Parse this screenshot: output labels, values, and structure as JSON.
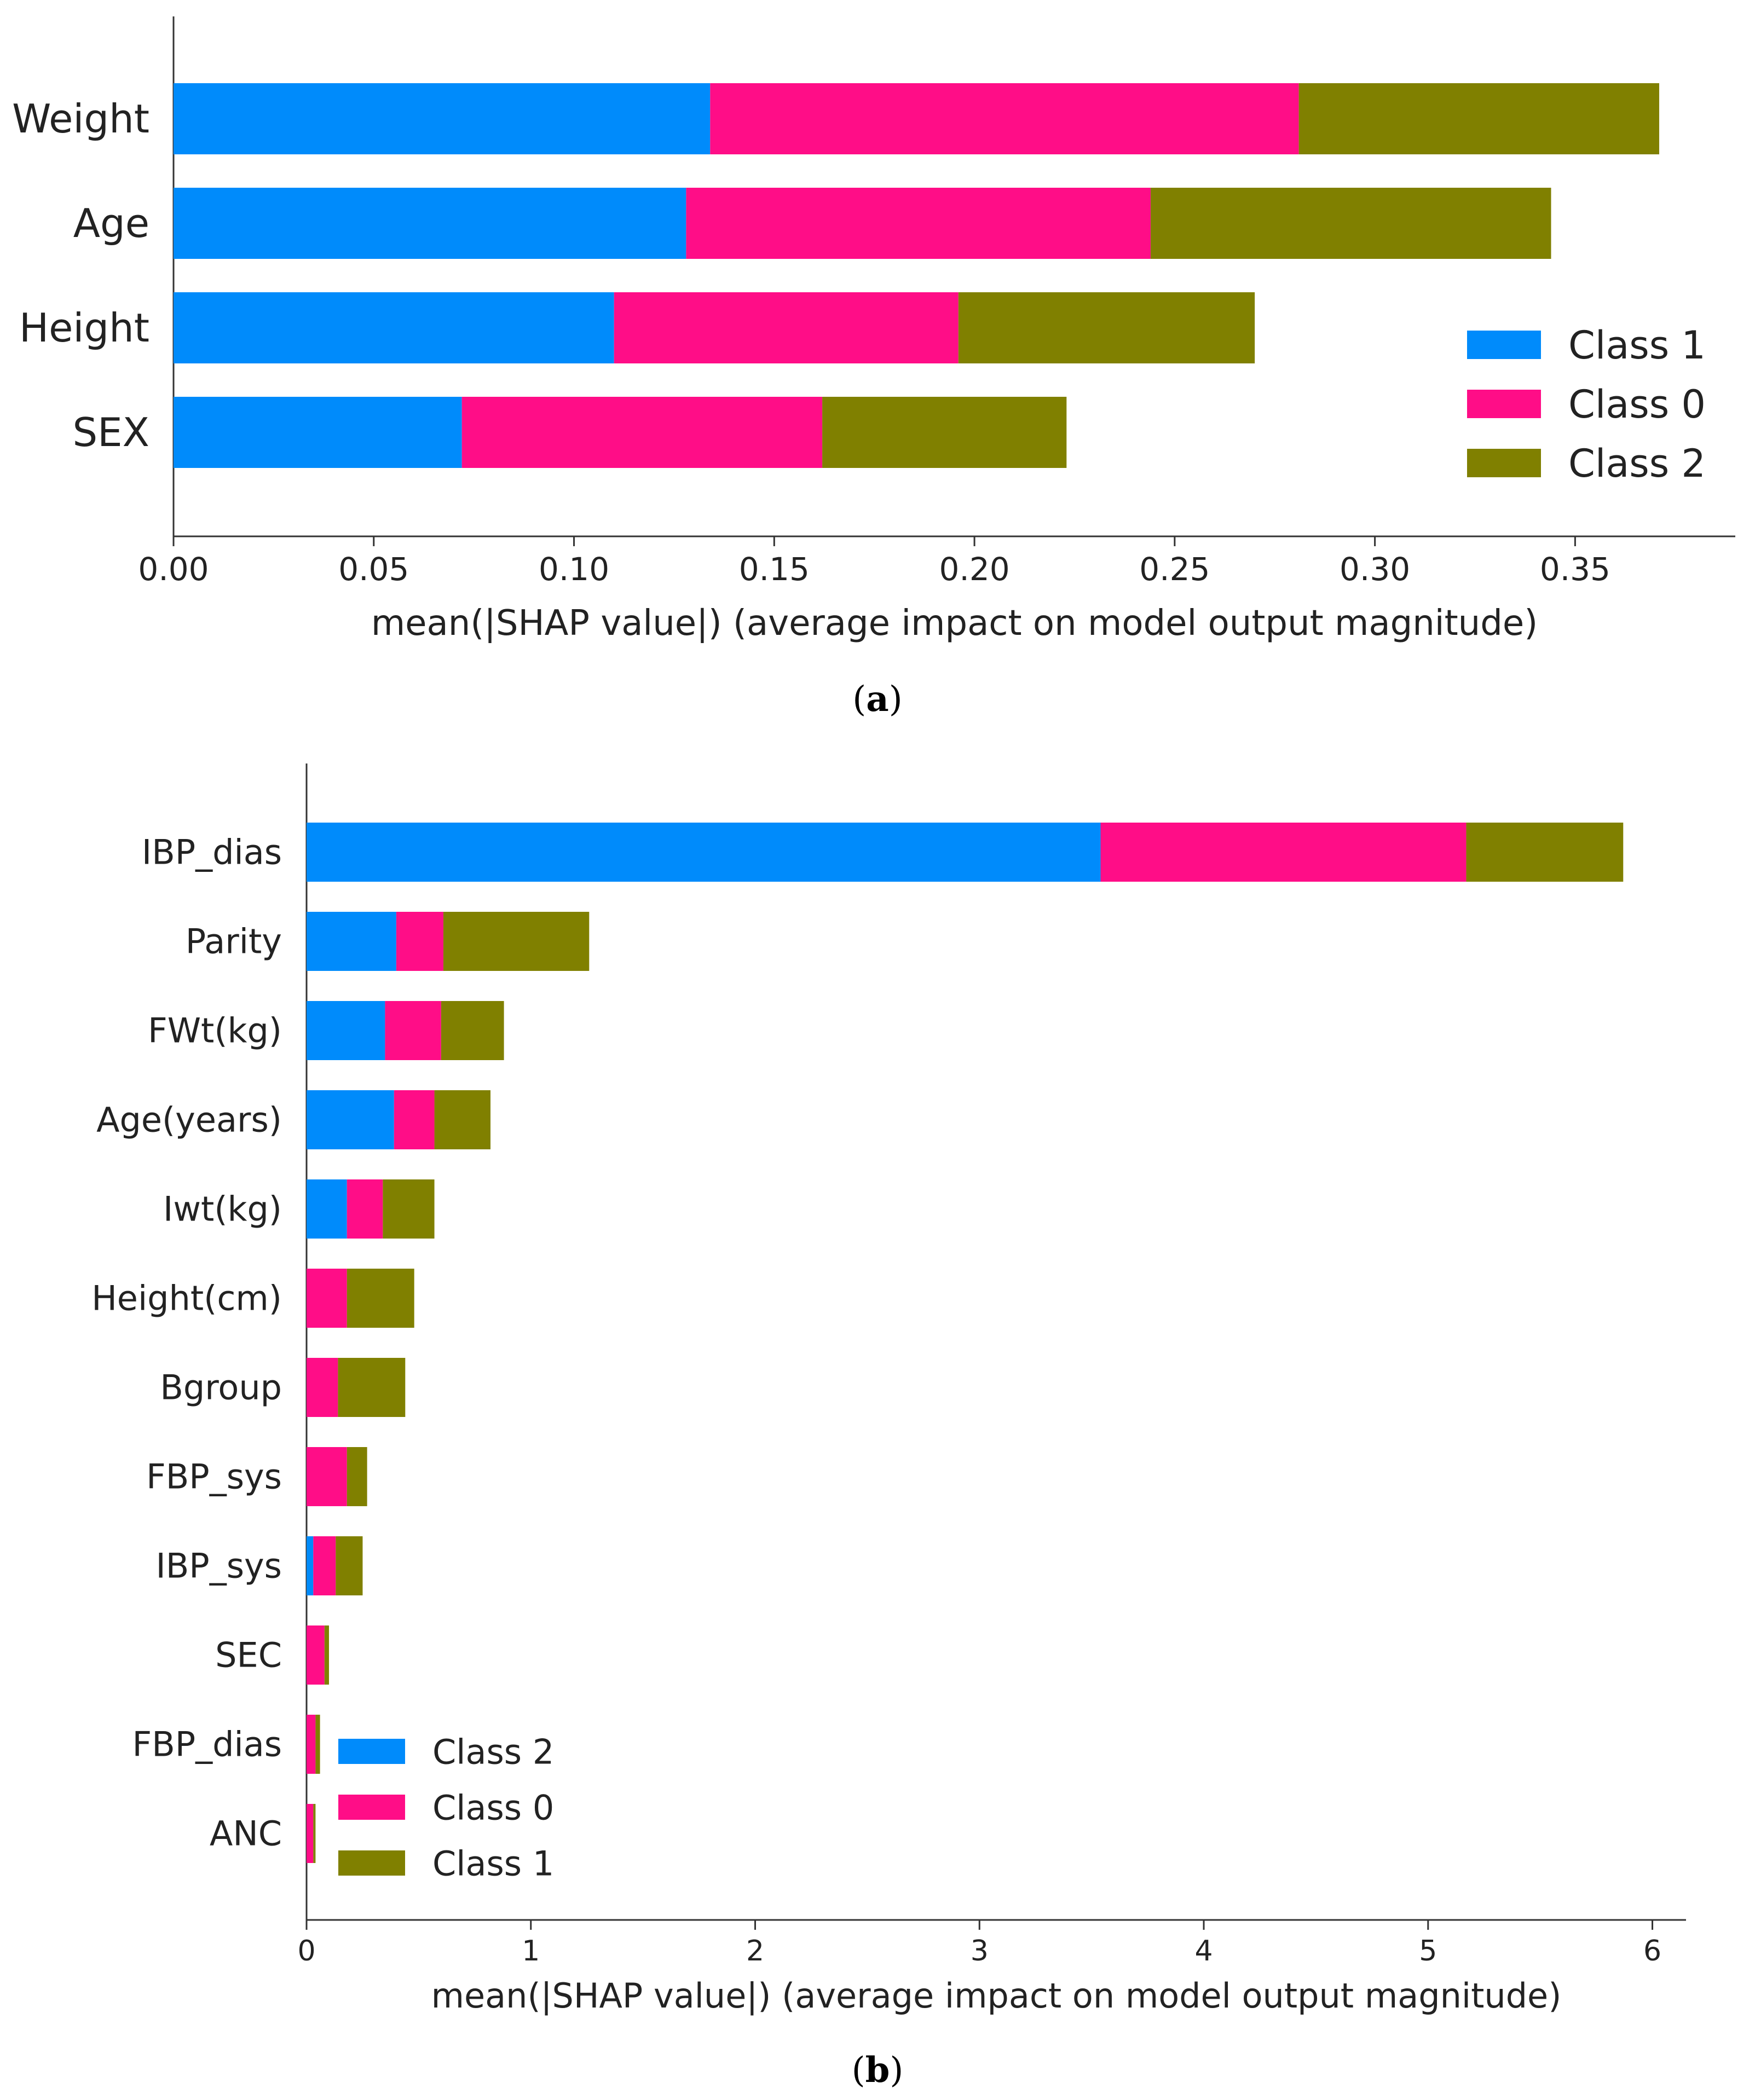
{
  "chart_data": [
    {
      "type": "bar",
      "orientation": "horizontal",
      "stacked": true,
      "caption_label": "a",
      "categories": [
        "Weight",
        "Age",
        "Height",
        "SEX"
      ],
      "series": [
        {
          "name": "Class 1",
          "color": "#008bfb",
          "values": [
            0.134,
            0.128,
            0.11,
            0.072
          ]
        },
        {
          "name": "Class 0",
          "color": "#ff0d87",
          "values": [
            0.147,
            0.116,
            0.086,
            0.09
          ]
        },
        {
          "name": "Class 2",
          "color": "#808000",
          "values": [
            0.09,
            0.1,
            0.074,
            0.061
          ]
        }
      ],
      "xlabel": "mean(|SHAP value|) (average impact on model output magnitude)",
      "xlim": [
        0,
        0.39
      ],
      "xticks": [
        "0.00",
        "0.05",
        "0.10",
        "0.15",
        "0.20",
        "0.25",
        "0.30",
        "0.35"
      ],
      "legend": [
        "Class 1",
        "Class 0",
        "Class 2"
      ],
      "legend_position": "bottom-right",
      "grid": false
    },
    {
      "type": "bar",
      "orientation": "horizontal",
      "stacked": true,
      "caption_label": "b",
      "categories": [
        "IBP_dias",
        "Parity",
        "FWt(kg)",
        "Age(years)",
        "Iwt(kg)",
        "Height(cm)",
        "Bgroup",
        "FBP_sys",
        "IBP_sys",
        "SEC",
        "FBP_dias",
        "ANC"
      ],
      "series": [
        {
          "name": "Class 2",
          "color": "#008bfb",
          "values": [
            3.54,
            0.4,
            0.35,
            0.39,
            0.18,
            0.0,
            0.0,
            0.0,
            0.03,
            0.0,
            0.0,
            0.0
          ]
        },
        {
          "name": "Class 0",
          "color": "#ff0d87",
          "values": [
            1.63,
            0.21,
            0.25,
            0.18,
            0.16,
            0.18,
            0.14,
            0.18,
            0.1,
            0.08,
            0.04,
            0.03
          ]
        },
        {
          "name": "Class 1",
          "color": "#808000",
          "values": [
            0.7,
            0.65,
            0.28,
            0.25,
            0.23,
            0.3,
            0.3,
            0.09,
            0.12,
            0.02,
            0.02,
            0.01
          ]
        }
      ],
      "xlabel": "mean(|SHAP value|) (average impact on model output magnitude)",
      "xlim": [
        0,
        6.15
      ],
      "xticks": [
        "0",
        "1",
        "2",
        "3",
        "4",
        "5",
        "6"
      ],
      "legend": [
        "Class 2",
        "Class 0",
        "Class 1"
      ],
      "legend_position": "bottom-left",
      "grid": false
    }
  ]
}
